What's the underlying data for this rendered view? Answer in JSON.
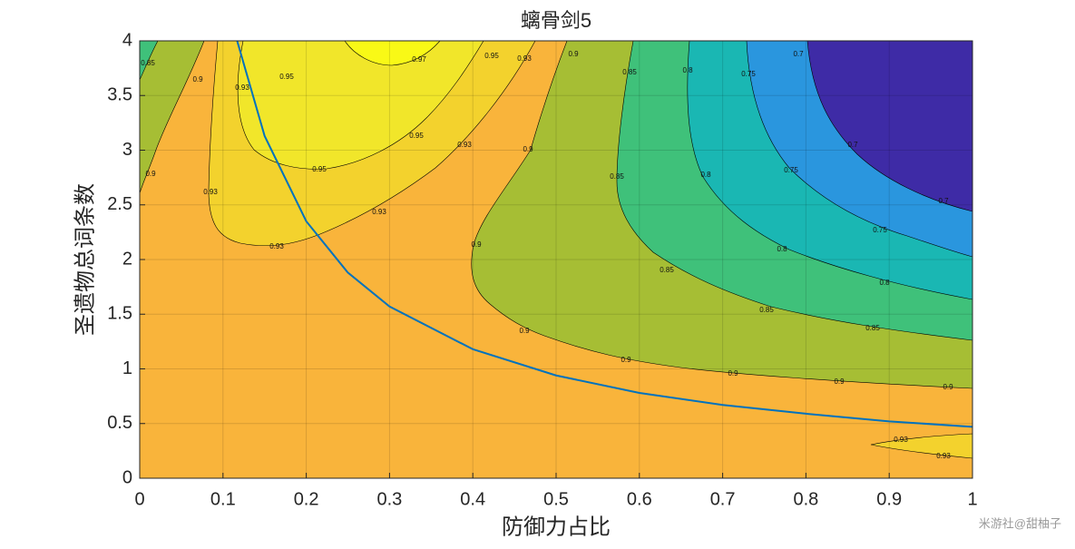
{
  "chart_data": {
    "type": "contour",
    "title": "螭骨剑5",
    "x_label": "防御力占比",
    "y_label": "圣遗物总词条数",
    "xlim": [
      0,
      1
    ],
    "ylim": [
      0,
      4
    ],
    "xticks": [
      0,
      0.1,
      0.2,
      0.3,
      0.4,
      0.5,
      0.6,
      0.7,
      0.8,
      0.9,
      1
    ],
    "yticks": [
      0,
      0.5,
      1,
      1.5,
      2,
      2.5,
      3,
      3.5,
      4
    ],
    "grid": true,
    "base_color": "#f9b43b",
    "levels": [
      0.7,
      0.75,
      0.8,
      0.85,
      0.9,
      0.93,
      0.95,
      0.97
    ],
    "level_colors": [
      "#3e2ba6",
      "#2a96de",
      "#1ab7b3",
      "#3fc17a",
      "#a6be34",
      "#f3d22d",
      "#f1e62a",
      "#f9f916"
    ],
    "series": [
      {
        "color": "#0072bd",
        "x": [
          0.117,
          0.15,
          0.2,
          0.25,
          0.3,
          0.4,
          0.5,
          0.6,
          0.7,
          0.8,
          0.9,
          1
        ],
        "values": [
          4,
          3.13,
          2.35,
          1.88,
          1.57,
          1.18,
          0.94,
          0.78,
          0.67,
          0.59,
          0.52,
          0.47
        ]
      }
    ],
    "watermark": "米游社@甜柚子"
  }
}
